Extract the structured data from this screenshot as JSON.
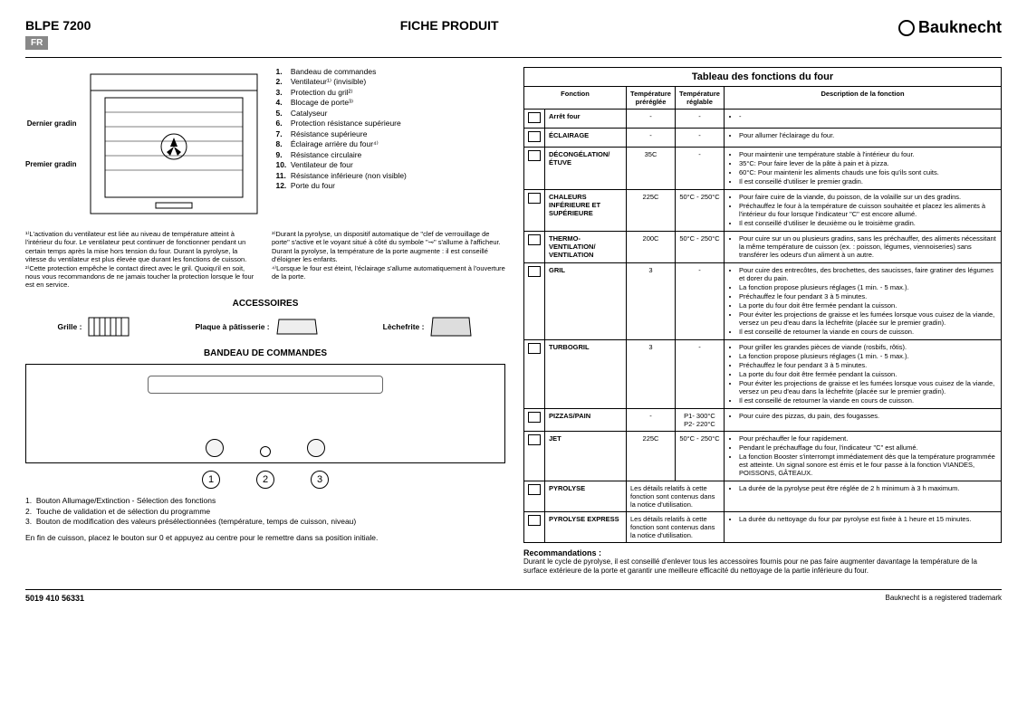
{
  "header": {
    "model": "BLPE 7200",
    "lang": "FR",
    "title": "FICHE PRODUIT",
    "brand": "Bauknecht"
  },
  "oven": {
    "label_top": "Dernier gradin",
    "label_bottom": "Premier gradin",
    "parts": [
      "Bandeau de commandes",
      "Ventilateur¹⁾ (invisible)",
      "Protection du gril²⁾",
      "Blocage de porte³⁾",
      "Catalyseur",
      "Protection résistance supérieure",
      "Résistance supérieure",
      "Éclairage arrière du four⁴⁾",
      "Résistance circulaire",
      "Ventilateur de four",
      "Résistance inférieure (non visible)",
      "Porte du four"
    ]
  },
  "notes": {
    "n1": "¹⁾L'activation du ventilateur est liée au niveau de température atteint à l'intérieur du four. Le ventilateur peut continuer de fonctionner pendant un certain temps après la mise hors tension du four. Durant la pyrolyse, la vitesse du ventilateur est plus élevée que durant les fonctions de cuisson.",
    "n2": "²⁾Cette protection empêche le contact direct avec le gril. Quoiqu'il en soit, nous vous recommandons de ne jamais toucher la protection lorsque le four est en service.",
    "n3": "³⁾Durant la pyrolyse, un dispositif automatique de \"clef de verrouillage de porte\" s'active et le voyant situé à côté du symbole \"⊸\" s'allume à l'afficheur. Durant la pyrolyse, la température de la porte augmente : il est conseillé d'éloigner les enfants.",
    "n4": "⁴⁾Lorsque le four est éteint, l'éclairage s'allume automatiquement à l'ouverture de la porte."
  },
  "accessories": {
    "title": "ACCESSOIRES",
    "items": [
      "Grille :",
      "Plaque à pâtisserie :",
      "Lèchefrite :"
    ]
  },
  "panel": {
    "title": "BANDEAU DE COMMANDES",
    "legend": [
      "Bouton Allumage/Extinction - Sélection des fonctions",
      "Touche de validation et de sélection du programme",
      "Bouton de modification des valeurs présélectionnées (température, temps de cuisson, niveau)"
    ],
    "final": "En fin de cuisson, placez le bouton sur 0 et appuyez au centre pour le remettre dans sa position initiale."
  },
  "table": {
    "title": "Tableau des fonctions du four",
    "headers": [
      "Fonction",
      "Température préréglée",
      "Température réglable",
      "Description de la fonction"
    ],
    "rows": [
      {
        "icon": "–",
        "name": "Arrêt four",
        "t1": "-",
        "t2": "-",
        "desc": [
          "-"
        ]
      },
      {
        "icon": "☼",
        "name": "ÉCLAIRAGE",
        "t1": "-",
        "t2": "-",
        "desc": [
          "Pour allumer l'éclairage du four."
        ]
      },
      {
        "icon": "❄",
        "name": "DÉCONGÉLATION/ ÉTUVE",
        "t1": "35C",
        "t2": "-",
        "desc": [
          "Pour maintenir une température stable à l'intérieur du four.",
          "35°C: Pour faire lever de la pâte à pain et à pizza.",
          "60°C: Pour maintenir les aliments chauds une fois qu'ils sont cuits.",
          "Il est conseillé d'utiliser le premier gradin."
        ]
      },
      {
        "icon": "▭",
        "name": "CHALEURS INFÉRIEURE ET SUPÉRIEURE",
        "t1": "225C",
        "t2": "50°C - 250°C",
        "desc": [
          "Pour faire cuire de la viande, du poisson, de la volaille sur un des gradins.",
          "Préchauffez le four à la température de cuisson souhaitée et placez les aliments à l'intérieur du four lorsque l'indicateur \"C\" est encore allumé.",
          "Il est conseillé d'utiliser le deuxième ou le troisième gradin."
        ]
      },
      {
        "icon": "⊛",
        "name": "THERMO-VENTILATION/ VENTILATION",
        "t1": "200C",
        "t2": "50°C - 250°C",
        "desc": [
          "Pour cuire sur un ou plusieurs gradins, sans les préchauffer, des aliments nécessitant la même température de cuisson (ex. : poisson, légumes, viennoiseries) sans transférer les odeurs d'un aliment à un autre."
        ]
      },
      {
        "icon": "▒",
        "name": "GRIL",
        "t1": "3",
        "t2": "-",
        "desc": [
          "Pour cuire des entrecôtes, des brochettes, des saucisses, faire gratiner des légumes et dorer du pain.",
          "La fonction propose plusieurs réglages (1 min. - 5 max.).",
          "Préchauffez le four pendant 3 à 5 minutes.",
          "La porte du four doit être fermée pendant la cuisson.",
          "Pour éviter les projections de graisse et les fumées lorsque vous cuisez de la viande, versez un peu d'eau dans la lèchefrite (placée sur le premier gradin).",
          "Il est conseillé de retourner la viande en cours de cuisson."
        ]
      },
      {
        "icon": "⊛▒",
        "name": "TURBOGRIL",
        "t1": "3",
        "t2": "-",
        "desc": [
          "Pour griller les grandes pièces de viande (rosbifs, rôtis).",
          "La fonction propose plusieurs réglages (1 min. - 5 max.).",
          "Préchauffez le four pendant 3 à 5 minutes.",
          "La porte du four doit être fermée pendant la cuisson.",
          "Pour éviter les projections de graisse et les fumées lorsque vous cuisez de la viande, versez un peu d'eau dans la lèchefrite (placée sur le premier gradin).",
          "Il est conseillé de retourner la viande en cours de cuisson."
        ]
      },
      {
        "icon": "👨‍🍳",
        "name": "PIZZAS/PAIN",
        "t1": "-",
        "t2": "P1- 300°C P2- 220°C",
        "desc": [
          "Pour cuire des pizzas, du pain, des fougasses."
        ]
      },
      {
        "icon": "🌡",
        "name": "JET",
        "t1": "225C",
        "t2": "50°C - 250°C",
        "desc": [
          "Pour préchauffer le four rapidement.",
          "Pendant le préchauffage du four, l'indicateur \"C\" est allumé.",
          "La fonction Booster s'interrompt immédiatement dès que la température programmée est atteinte. Un signal sonore est émis et le four passe à la fonction VIANDES, POISSONS, GÂTEAUX."
        ]
      },
      {
        "icon": "▭",
        "name": "PYROLYSE",
        "t1cols": "Les détails relatifs à cette fonction sont contenus dans la notice d'utilisation.",
        "desc": [
          "La durée de la pyrolyse peut être réglée de 2 h minimum à 3 h maximum."
        ]
      },
      {
        "icon": "e",
        "name": "PYROLYSE EXPRESS",
        "t1cols": "Les détails relatifs à cette fonction sont contenus dans la notice d'utilisation.",
        "desc": [
          "La durée du nettoyage du four par pyrolyse est fixée à 1 heure et 15 minutes."
        ]
      }
    ]
  },
  "reco": {
    "title": "Recommandations :",
    "text": "Durant le cycle de pyrolyse, il est conseillé d'enlever tous les accessoires fournis pour ne pas faire augmenter davantage la température de la surface extérieure de la porte et garantir une meilleure efficacité du nettoyage de la partie inférieure du four."
  },
  "footer": {
    "code": "5019 410 56331",
    "trademark": "Bauknecht is a registered trademark"
  },
  "colors": {
    "bg": "#ffffff",
    "text": "#000000",
    "badge": "#888888"
  }
}
